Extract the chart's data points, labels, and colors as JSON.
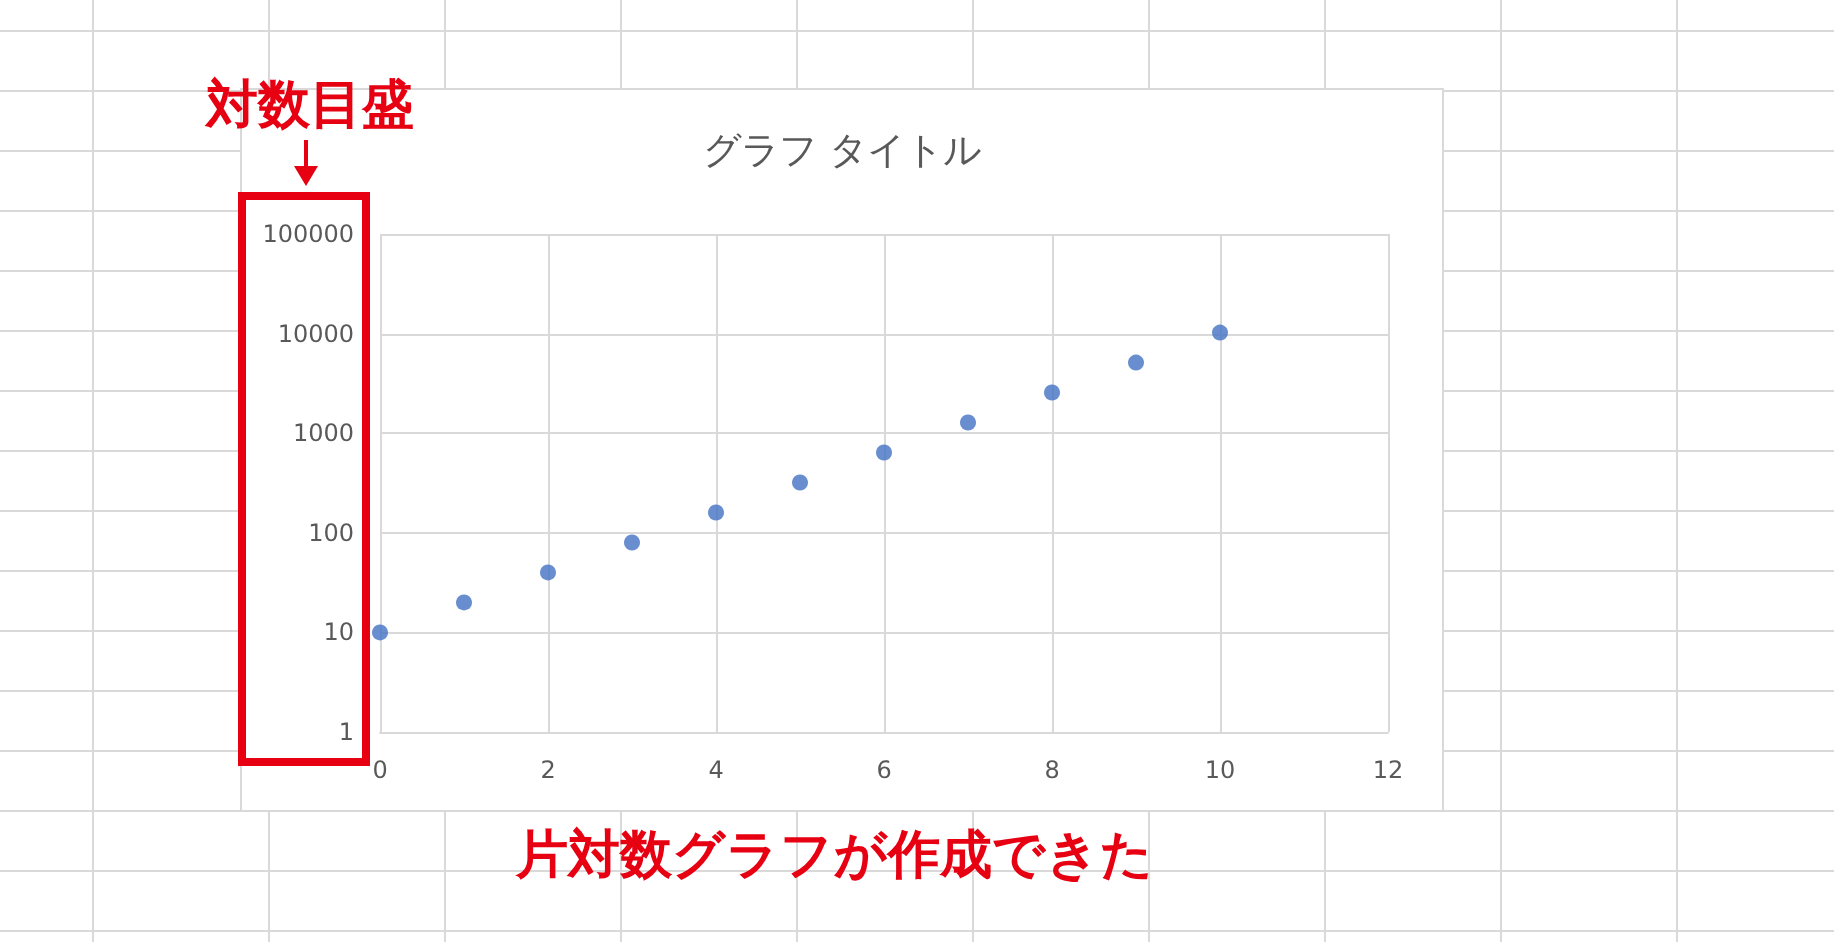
{
  "chart_data": {
    "type": "scatter",
    "title": "グラフ タイトル",
    "x": [
      0,
      1,
      2,
      3,
      4,
      5,
      6,
      7,
      8,
      9,
      10
    ],
    "values": [
      10,
      20,
      40,
      80,
      160,
      320,
      640,
      1280,
      2560,
      5120,
      10240
    ],
    "color": "#4472c4",
    "marker": "circle",
    "xlim": [
      0,
      12
    ],
    "xticks": [
      0,
      2,
      4,
      6,
      8,
      10,
      12
    ],
    "ylim": [
      1,
      100000
    ],
    "yticks": [
      1,
      10,
      100,
      1000,
      10000,
      100000
    ],
    "log": "y",
    "grid": true,
    "annotations": [
      "対数目盛",
      "片対数グラフが作成できた"
    ]
  }
}
